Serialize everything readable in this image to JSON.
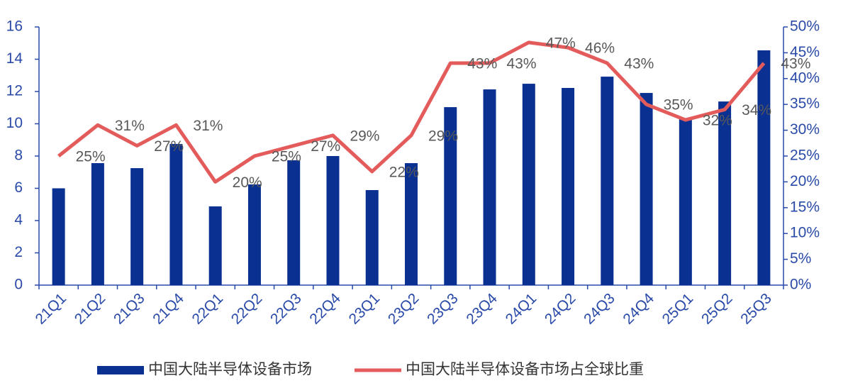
{
  "chart_data": {
    "type": "bar_line",
    "categories": [
      "21Q1",
      "21Q2",
      "21Q3",
      "21Q4",
      "22Q1",
      "22Q2",
      "22Q3",
      "22Q4",
      "23Q1",
      "23Q2",
      "23Q3",
      "23Q4",
      "24Q1",
      "24Q2",
      "24Q3",
      "24Q4",
      "25Q1",
      "25Q2",
      "25Q3"
    ],
    "series": [
      {
        "name": "中国大陆半导体设备市场",
        "type": "bar",
        "color": "#0a3191",
        "axis": "y",
        "values": [
          6.0,
          7.56,
          7.25,
          8.75,
          4.88,
          6.24,
          7.74,
          8.0,
          5.89,
          7.56,
          11.03,
          12.13,
          12.48,
          12.22,
          12.92,
          11.91,
          10.29,
          11.38,
          14.55
        ]
      },
      {
        "name": "中国大陆半导体设备市场占全球比重",
        "type": "line",
        "color": "#e35b5b",
        "axis": "y2",
        "values": [
          25,
          31,
          27,
          31,
          20,
          25,
          27,
          29,
          22,
          29,
          43,
          43,
          47,
          46,
          43,
          35,
          32,
          34,
          43
        ],
        "value_labels": [
          "25%",
          "31%",
          "27%",
          "31%",
          "20%",
          "25%",
          "27%",
          "29%",
          "22%",
          "29%",
          "43%",
          "43%",
          "47%",
          "46%",
          "43%",
          "35%",
          "32%",
          "34%",
          "43%"
        ]
      }
    ],
    "ylim": [
      0,
      16
    ],
    "yticks": [
      0,
      2,
      4,
      6,
      8,
      10,
      12,
      14,
      16
    ],
    "y2lim": [
      0,
      50
    ],
    "y2ticks": [
      {
        "value": 0,
        "label": "0%"
      },
      {
        "value": 5,
        "label": "5%"
      },
      {
        "value": 10,
        "label": "10%"
      },
      {
        "value": 15,
        "label": "15%"
      },
      {
        "value": 20,
        "label": "20%"
      },
      {
        "value": 25,
        "label": "25%"
      },
      {
        "value": 30,
        "label": "30%"
      },
      {
        "value": 35,
        "label": "35%"
      },
      {
        "value": 40,
        "label": "40%"
      },
      {
        "value": 45,
        "label": "45%"
      },
      {
        "value": 50,
        "label": "50%"
      }
    ],
    "legend": "bottom"
  }
}
